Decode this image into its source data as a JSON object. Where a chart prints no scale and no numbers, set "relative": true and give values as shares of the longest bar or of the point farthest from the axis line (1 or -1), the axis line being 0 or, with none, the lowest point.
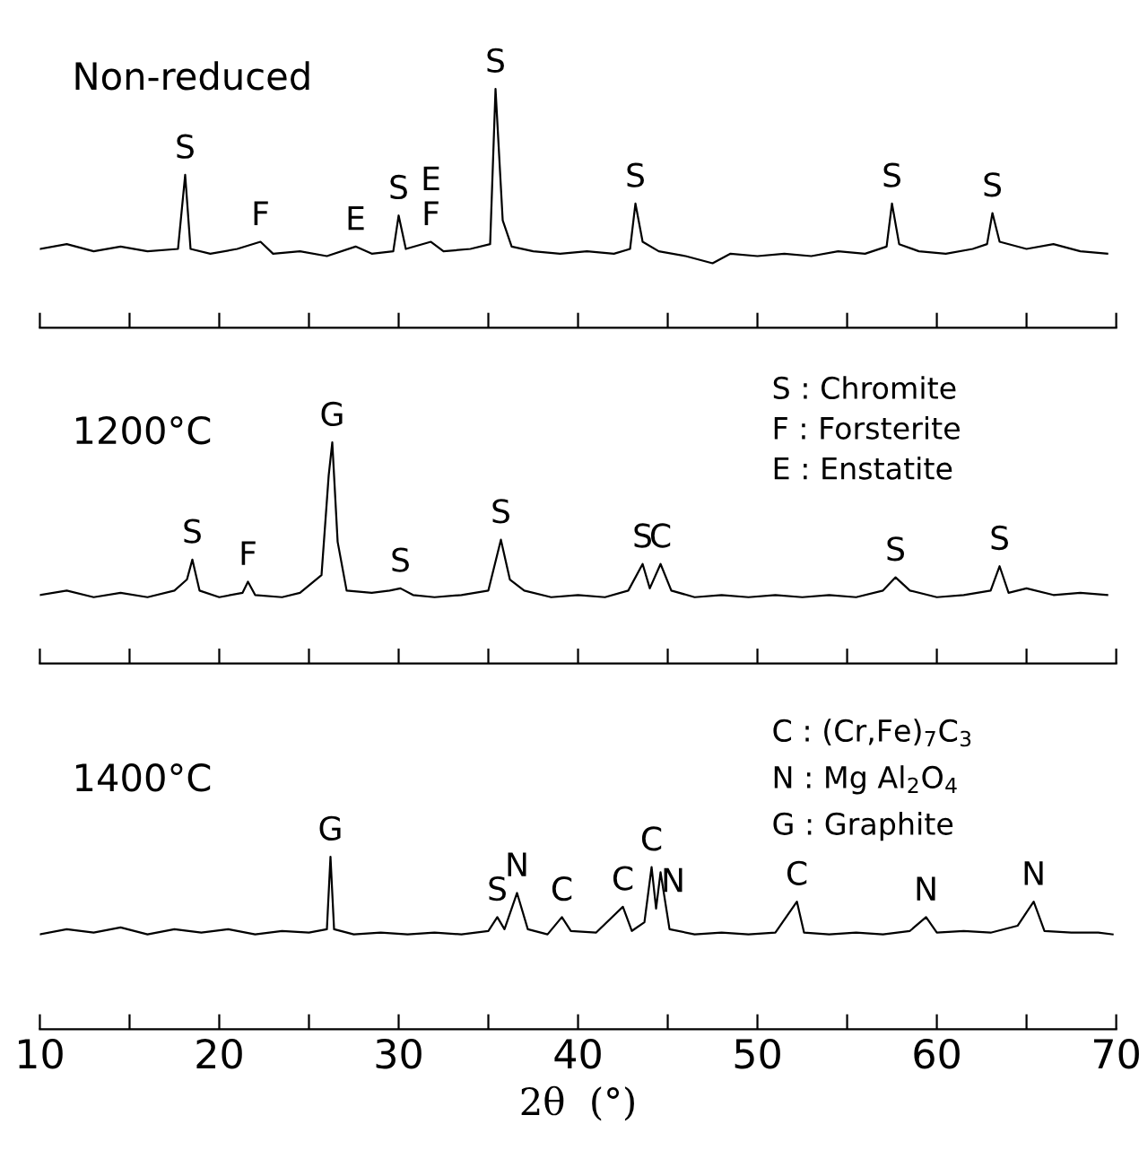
{
  "chart_data": [
    {
      "type": "line",
      "title": "Non-reduced",
      "relative": true,
      "xlim": [
        10,
        70
      ],
      "xticks": [
        10,
        {
          "value": 15,
          "label": null
        },
        20,
        {
          "value": 25,
          "label": null
        },
        30,
        {
          "value": 35,
          "label": null
        },
        40,
        {
          "value": 45,
          "label": null
        },
        50,
        {
          "value": 55,
          "label": null
        },
        60,
        {
          "value": 65,
          "label": null
        },
        70
      ],
      "tick_labels": false,
      "grid": false,
      "legend": false,
      "series": [
        {
          "color": "#000000",
          "x": [
            10,
            11.5,
            13,
            14.5,
            16,
            17.7,
            18.1,
            18.4,
            19.5,
            21,
            22.3,
            23,
            24.5,
            26,
            27.6,
            28.5,
            29.7,
            30.0,
            30.4,
            31.8,
            32.5,
            34,
            35.1,
            35.4,
            35.8,
            36.3,
            37.5,
            39,
            40.5,
            42,
            42.9,
            43.2,
            43.6,
            44.5,
            46,
            47.5,
            48.5,
            50,
            51.5,
            53,
            54.5,
            56,
            57.2,
            57.5,
            57.9,
            59,
            60.5,
            62,
            62.8,
            63.1,
            63.5,
            65,
            66.5,
            68,
            69.5
          ],
          "values": [
            0.33,
            0.35,
            0.32,
            0.34,
            0.32,
            0.33,
            0.64,
            0.33,
            0.31,
            0.33,
            0.36,
            0.31,
            0.32,
            0.3,
            0.34,
            0.31,
            0.32,
            0.47,
            0.33,
            0.36,
            0.32,
            0.33,
            0.35,
            1.0,
            0.45,
            0.34,
            0.32,
            0.31,
            0.32,
            0.31,
            0.33,
            0.52,
            0.36,
            0.32,
            0.3,
            0.27,
            0.31,
            0.3,
            0.31,
            0.3,
            0.32,
            0.31,
            0.34,
            0.52,
            0.35,
            0.32,
            0.31,
            0.33,
            0.35,
            0.48,
            0.36,
            0.33,
            0.35,
            0.32,
            0.31
          ]
        }
      ],
      "annotations": [
        {
          "text": "S",
          "x": 18.1,
          "y": 0.64
        },
        {
          "text": "F",
          "x": 22.3,
          "y": 0.36
        },
        {
          "text": "E",
          "x": 27.6,
          "y": 0.34
        },
        {
          "text": "S",
          "x": 30.0,
          "y": 0.47
        },
        {
          "text": "F",
          "x": 31.8,
          "y": 0.36
        },
        {
          "text": "E",
          "x": 31.8,
          "y": 0.36
        },
        {
          "text": "S",
          "x": 35.4,
          "y": 1.0
        },
        {
          "text": "S",
          "x": 43.2,
          "y": 0.52
        },
        {
          "text": "S",
          "x": 57.5,
          "y": 0.52
        },
        {
          "text": "S",
          "x": 63.1,
          "y": 0.48
        }
      ]
    },
    {
      "type": "line",
      "title": "1200°C",
      "relative": true,
      "xlim": [
        10,
        70
      ],
      "xticks": [
        10,
        {
          "value": 15,
          "label": null
        },
        20,
        {
          "value": 25,
          "label": null
        },
        30,
        {
          "value": 35,
          "label": null
        },
        40,
        {
          "value": 45,
          "label": null
        },
        50,
        {
          "value": 55,
          "label": null
        },
        60,
        {
          "value": 65,
          "label": null
        },
        70
      ],
      "tick_labels": false,
      "grid": false,
      "legend": false,
      "series": [
        {
          "color": "#000000",
          "x": [
            10,
            11.5,
            13,
            14.5,
            16,
            17.5,
            18.2,
            18.5,
            18.9,
            20,
            21.3,
            21.6,
            22,
            23.5,
            24.5,
            25.7,
            26.1,
            26.3,
            26.6,
            27.1,
            28.5,
            29.5,
            30.1,
            30.8,
            32,
            33.5,
            35,
            35.7,
            36.2,
            37,
            38.5,
            40,
            41.5,
            42.8,
            43.6,
            44.0,
            44.6,
            45.2,
            46.5,
            48,
            49.5,
            51,
            52.5,
            54,
            55.5,
            57,
            57.7,
            58.5,
            60,
            61.5,
            63,
            63.5,
            64,
            65,
            66.5,
            68,
            69.5
          ],
          "values": [
            0.31,
            0.33,
            0.3,
            0.32,
            0.3,
            0.33,
            0.38,
            0.47,
            0.33,
            0.3,
            0.32,
            0.37,
            0.31,
            0.3,
            0.32,
            0.4,
            0.85,
            1.0,
            0.55,
            0.33,
            0.32,
            0.33,
            0.34,
            0.31,
            0.3,
            0.31,
            0.33,
            0.56,
            0.38,
            0.33,
            0.3,
            0.31,
            0.3,
            0.33,
            0.45,
            0.34,
            0.45,
            0.33,
            0.3,
            0.31,
            0.3,
            0.31,
            0.3,
            0.31,
            0.3,
            0.33,
            0.39,
            0.33,
            0.3,
            0.31,
            0.33,
            0.44,
            0.32,
            0.34,
            0.31,
            0.32,
            0.31
          ]
        }
      ],
      "annotations": [
        {
          "text": "S",
          "x": 18.5,
          "y": 0.47
        },
        {
          "text": "F",
          "x": 21.6,
          "y": 0.37
        },
        {
          "text": "G",
          "x": 26.3,
          "y": 1.0
        },
        {
          "text": "S",
          "x": 30.1,
          "y": 0.34
        },
        {
          "text": "S",
          "x": 35.7,
          "y": 0.56
        },
        {
          "text": "S",
          "x": 43.6,
          "y": 0.45
        },
        {
          "text": "C",
          "x": 44.6,
          "y": 0.45
        },
        {
          "text": "S",
          "x": 57.7,
          "y": 0.39
        },
        {
          "text": "S",
          "x": 63.5,
          "y": 0.44
        },
        "S : Chromite",
        "F : Forsterite",
        "E : Enstatite"
      ]
    },
    {
      "type": "line",
      "title": "1400°C",
      "relative": true,
      "xlabel": "2θ  (°)",
      "xlim": [
        10,
        70
      ],
      "xticks": [
        10,
        {
          "value": 15,
          "label": null
        },
        20,
        {
          "value": 25,
          "label": null
        },
        30,
        {
          "value": 35,
          "label": null
        },
        40,
        {
          "value": 45,
          "label": null
        },
        50,
        {
          "value": 55,
          "label": null
        },
        60,
        {
          "value": 65,
          "label": null
        },
        70
      ],
      "tick_labels": "x",
      "grid": false,
      "legend": false,
      "series": [
        {
          "color": "#000000",
          "x": [
            10,
            11.5,
            13,
            14.5,
            16,
            17.5,
            19,
            20.5,
            22,
            23.5,
            25,
            26.0,
            26.2,
            26.4,
            27.5,
            29,
            30.5,
            32,
            33.5,
            35,
            35.5,
            35.9,
            36.6,
            37.2,
            38.3,
            39.1,
            39.6,
            41,
            42.5,
            43,
            43.7,
            44.1,
            44.35,
            44.6,
            45.1,
            46.5,
            48,
            49.5,
            51,
            52.2,
            52.6,
            54,
            55.5,
            57,
            58.5,
            59.4,
            60,
            61.5,
            63,
            64.5,
            65.4,
            66,
            67.5,
            69,
            69.8
          ],
          "values": [
            0.55,
            0.58,
            0.56,
            0.59,
            0.55,
            0.58,
            0.56,
            0.58,
            0.55,
            0.57,
            0.56,
            0.58,
            1.0,
            0.58,
            0.55,
            0.56,
            0.55,
            0.56,
            0.55,
            0.57,
            0.65,
            0.58,
            0.79,
            0.58,
            0.55,
            0.65,
            0.57,
            0.56,
            0.71,
            0.57,
            0.62,
            0.94,
            0.7,
            0.91,
            0.58,
            0.55,
            0.56,
            0.55,
            0.56,
            0.74,
            0.56,
            0.55,
            0.56,
            0.55,
            0.57,
            0.65,
            0.56,
            0.57,
            0.56,
            0.6,
            0.74,
            0.57,
            0.56,
            0.56,
            0.55
          ]
        }
      ],
      "annotations": [
        {
          "text": "G",
          "x": 26.2,
          "y": 1.0
        },
        {
          "text": "S",
          "x": 35.5,
          "y": 0.65
        },
        {
          "text": "N",
          "x": 36.6,
          "y": 0.79
        },
        {
          "text": "C",
          "x": 39.1,
          "y": 0.65
        },
        {
          "text": "C",
          "x": 42.5,
          "y": 0.71
        },
        {
          "text": "C",
          "x": 44.1,
          "y": 0.94
        },
        {
          "text": "N",
          "x": 45.3,
          "y": 0.7
        },
        {
          "text": "C",
          "x": 52.2,
          "y": 0.74
        },
        {
          "text": "N",
          "x": 59.4,
          "y": 0.65
        },
        {
          "text": "N",
          "x": 65.4,
          "y": 0.74
        },
        "C : (Cr,Fe)$_{7}$C$_{3}$",
        "N : Mg Al$_{2}$O$_{4}$",
        "G : Graphite"
      ]
    }
  ]
}
